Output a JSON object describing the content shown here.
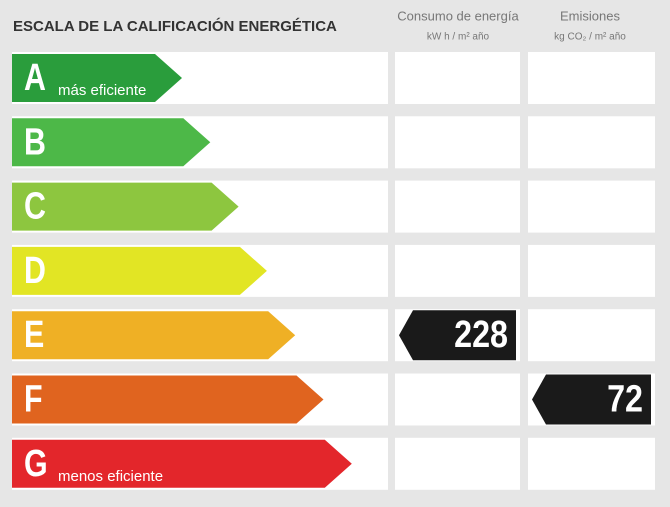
{
  "header": {
    "title": "ESCALA DE LA CALIFICACIÓN ENERGÉTICA",
    "columns": [
      {
        "name": "Consumo de energía",
        "unit": "kW h / m² año"
      },
      {
        "name": "Emisiones",
        "unit": "kg CO₂ / m² año"
      }
    ]
  },
  "rows": [
    {
      "letter": "A",
      "label": "más eficiente",
      "color": "#2a9d3c"
    },
    {
      "letter": "B",
      "color": "#4db848"
    },
    {
      "letter": "C",
      "color": "#8dc63f"
    },
    {
      "letter": "D",
      "color": "#e2e524"
    },
    {
      "letter": "E",
      "color": "#efb025",
      "consumo": 228
    },
    {
      "letter": "F",
      "color": "#e0641f",
      "emisiones": 72
    },
    {
      "letter": "G",
      "label": "menos eficiente",
      "color": "#e3262b"
    }
  ]
}
